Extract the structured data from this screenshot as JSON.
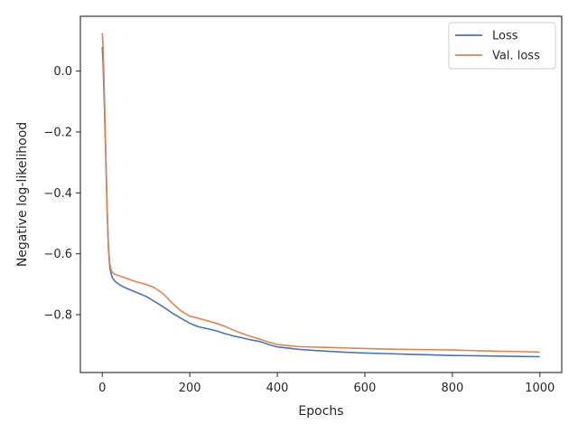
{
  "chart_data": {
    "type": "line",
    "xlabel": "Epochs",
    "ylabel": "Negative log-likelihood",
    "xlim": [
      -50,
      1050
    ],
    "ylim": [
      -0.99,
      0.18
    ],
    "xticks": [
      0,
      200,
      400,
      600,
      800,
      1000
    ],
    "yticks": [
      0.0,
      -0.2,
      -0.4,
      -0.6,
      -0.8
    ],
    "ytick_labels": [
      "0.0",
      "−0.2",
      "−0.4",
      "−0.6",
      "−0.8"
    ],
    "grid": false,
    "legend_position": "top-right",
    "series": [
      {
        "name": "Loss",
        "color": "#4c72b0",
        "x": [
          0,
          2,
          5,
          8,
          11,
          14,
          17,
          20,
          23,
          26,
          30,
          40,
          50,
          60,
          80,
          100,
          120,
          140,
          160,
          180,
          200,
          220,
          240,
          260,
          280,
          300,
          320,
          340,
          360,
          380,
          400,
          450,
          500,
          550,
          600,
          650,
          700,
          750,
          800,
          850,
          900,
          950,
          1000
        ],
        "y": [
          0.08,
          0.02,
          -0.12,
          -0.28,
          -0.45,
          -0.58,
          -0.64,
          -0.665,
          -0.678,
          -0.685,
          -0.692,
          -0.702,
          -0.71,
          -0.716,
          -0.728,
          -0.74,
          -0.757,
          -0.775,
          -0.795,
          -0.812,
          -0.828,
          -0.84,
          -0.846,
          -0.853,
          -0.862,
          -0.87,
          -0.876,
          -0.883,
          -0.888,
          -0.898,
          -0.906,
          -0.914,
          -0.919,
          -0.923,
          -0.926,
          -0.928,
          -0.93,
          -0.932,
          -0.934,
          -0.935,
          -0.936,
          -0.937,
          -0.938
        ]
      },
      {
        "name": "Val. loss",
        "color": "#dd8452",
        "x": [
          0,
          2,
          5,
          8,
          11,
          14,
          17,
          20,
          23,
          26,
          30,
          40,
          50,
          60,
          80,
          100,
          120,
          140,
          160,
          180,
          200,
          220,
          240,
          260,
          280,
          300,
          320,
          340,
          360,
          380,
          400,
          450,
          500,
          550,
          600,
          650,
          700,
          750,
          800,
          850,
          900,
          950,
          1000
        ],
        "y": [
          0.125,
          0.08,
          -0.08,
          -0.26,
          -0.44,
          -0.57,
          -0.63,
          -0.652,
          -0.66,
          -0.665,
          -0.668,
          -0.673,
          -0.678,
          -0.683,
          -0.693,
          -0.7,
          -0.712,
          -0.732,
          -0.762,
          -0.788,
          -0.805,
          -0.812,
          -0.82,
          -0.828,
          -0.838,
          -0.851,
          -0.862,
          -0.872,
          -0.88,
          -0.89,
          -0.898,
          -0.905,
          -0.907,
          -0.909,
          -0.911,
          -0.913,
          -0.914,
          -0.915,
          -0.916,
          -0.918,
          -0.92,
          -0.921,
          -0.923
        ]
      }
    ]
  }
}
